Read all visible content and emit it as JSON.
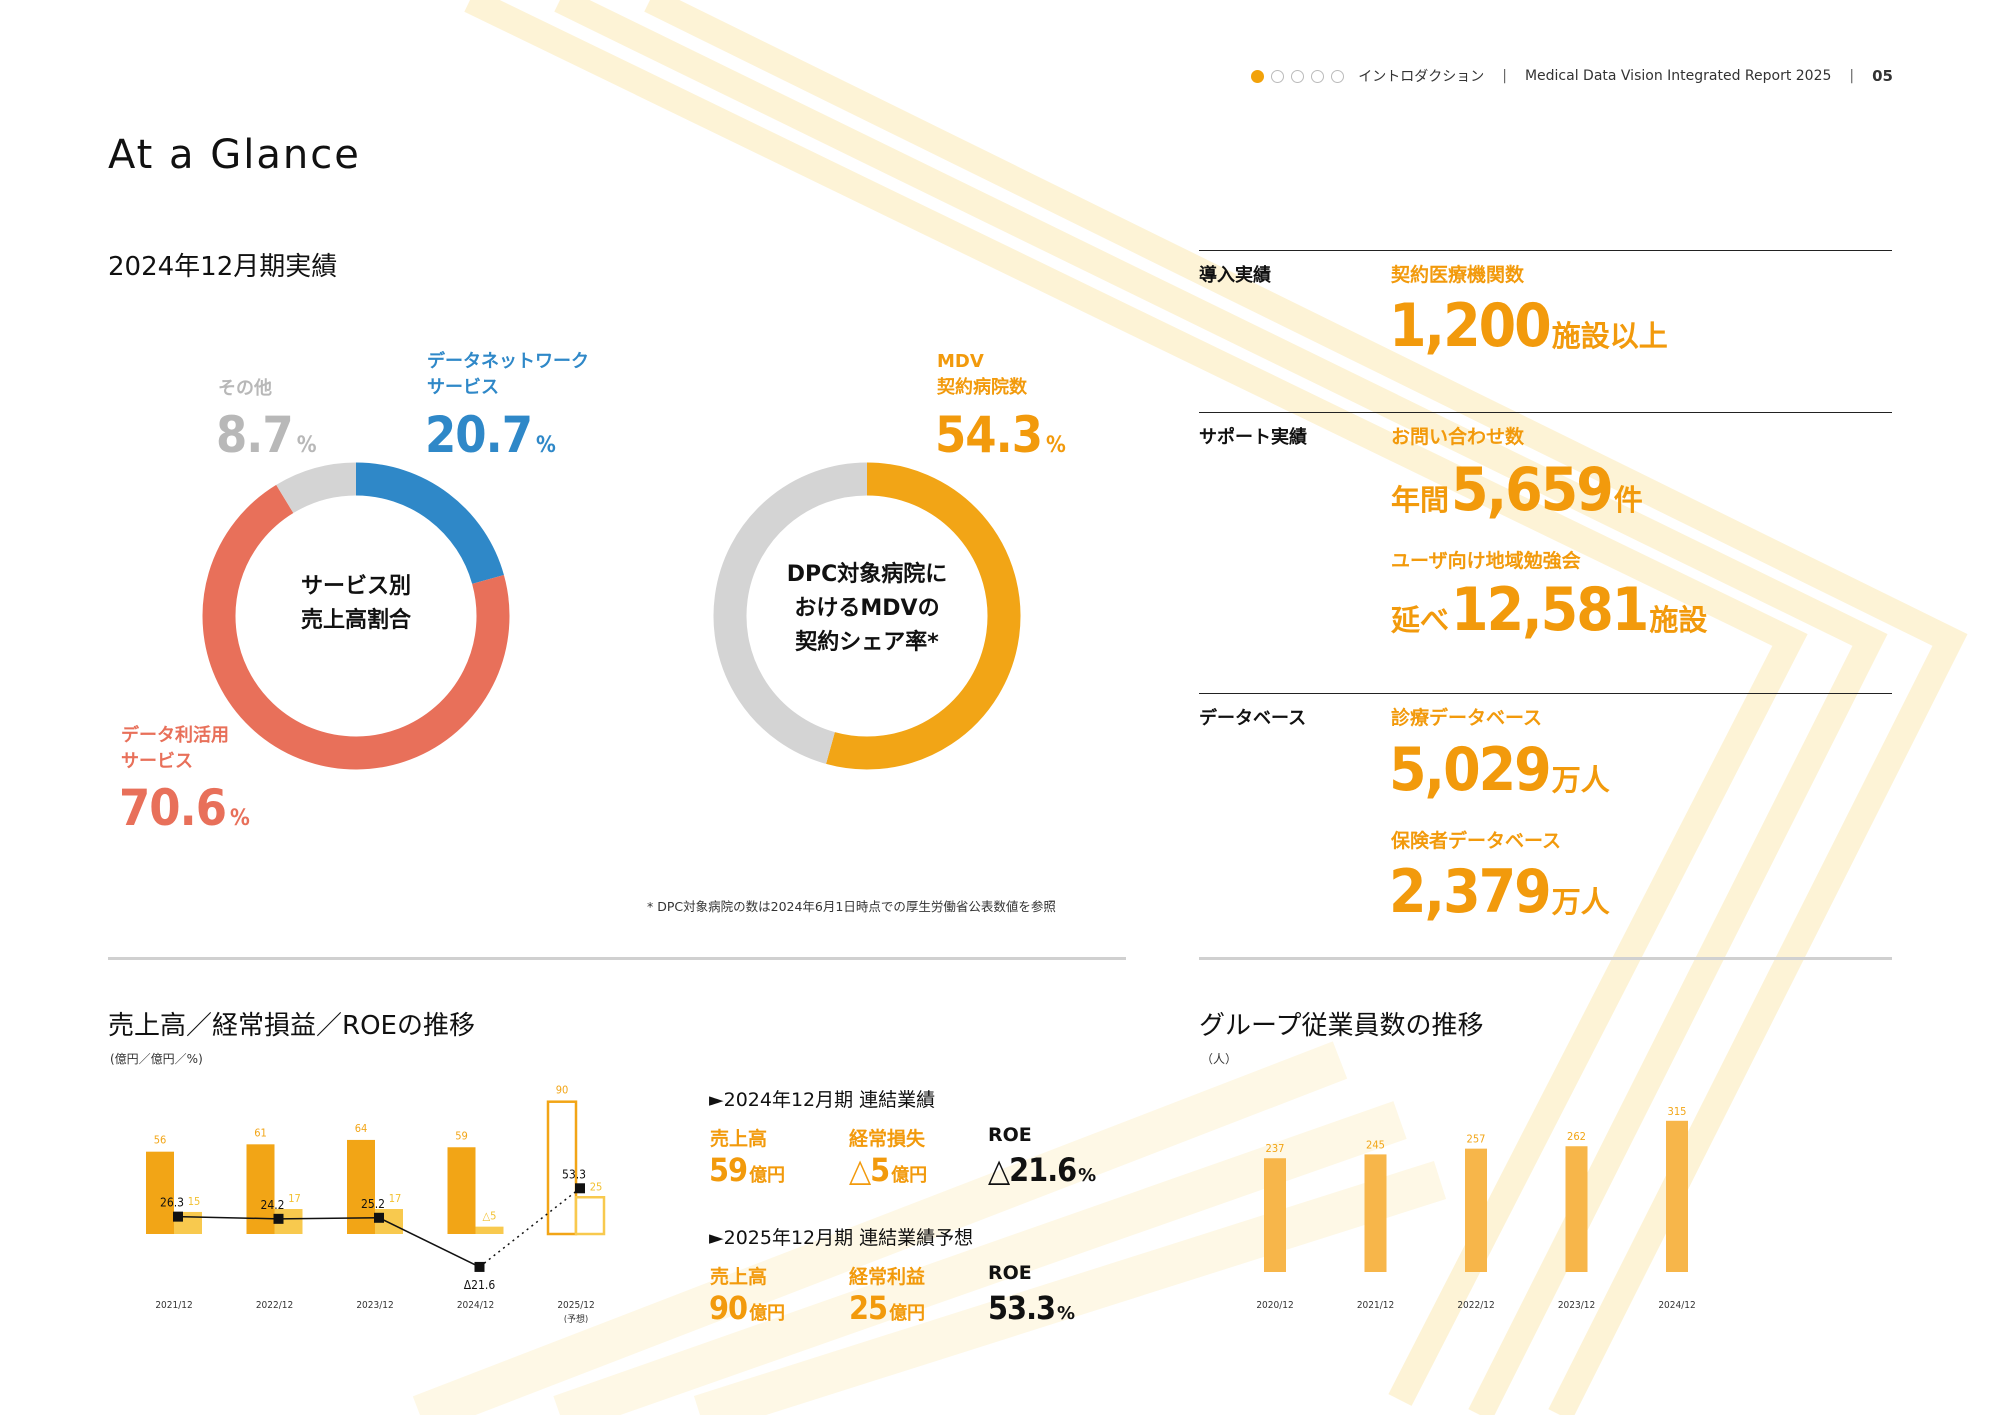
{
  "header": {
    "section": "イントロダクション",
    "report": "Medical Data Vision Integrated Report 2025",
    "page": "05",
    "dots_total": 5,
    "dots_active": 1
  },
  "title": "At a Glance",
  "subtitle": "2024年12月期実績",
  "donut_sales": {
    "center_line1": "サービス別",
    "center_line2": "売上高割合",
    "segments": [
      {
        "label_line1": "データネットワーク",
        "label_line2": "サービス",
        "value": "20.7",
        "unit": "%",
        "share": 20.7,
        "color": "#2f88c8"
      },
      {
        "label_line1": "データ利活用",
        "label_line2": "サービス",
        "value": "70.6",
        "unit": "%",
        "share": 70.6,
        "color": "#e8705a"
      },
      {
        "label_line1": "その他",
        "label_line2": "",
        "value": "8.7",
        "unit": "%",
        "share": 8.7,
        "color": "#d4d4d4"
      }
    ]
  },
  "donut_share": {
    "center_line1": "DPC対象病院に",
    "center_line2": "おけるMDVの",
    "center_line3": "契約シェア率*",
    "label_line1": "MDV",
    "label_line2": "契約病院数",
    "value": "54.3",
    "unit": "%",
    "share": 54.3,
    "color": "#f2a516",
    "rest_color": "#d4d4d4"
  },
  "footnote": "* DPC対象病院の数は2024年6月1日時点での厚生労働省公表数値を参照",
  "kpis": {
    "intro": {
      "category": "導入実績",
      "label": "契約医療機関数",
      "value": "1,200",
      "suffix": "施設以上"
    },
    "support": {
      "category": "サポート実績",
      "items": [
        {
          "label": "お問い合わせ数",
          "prefix": "年間",
          "value": "5,659",
          "suffix": "件"
        },
        {
          "label": "ユーザ向け地域勉強会",
          "prefix": "延べ",
          "value": "12,581",
          "suffix": "施設"
        }
      ]
    },
    "database": {
      "category": "データベース",
      "items": [
        {
          "label": "診療データベース",
          "value": "5,029",
          "suffix": "万人"
        },
        {
          "label": "保険者データベース",
          "value": "2,379",
          "suffix": "万人"
        }
      ]
    }
  },
  "sales_section": {
    "title": "売上高／経常損益／ROEの推移",
    "unit": "(億円／億円／%)",
    "results_2024": {
      "heading": "►2024年12月期 連結業績",
      "items": [
        {
          "label": "売上高",
          "value": "59",
          "suffix": "億円"
        },
        {
          "label": "経常損失",
          "value": "△5",
          "suffix": "億円"
        },
        {
          "label": "ROE",
          "value": "△21.6",
          "suffix": "%"
        }
      ]
    },
    "results_2025": {
      "heading": "►2025年12月期 連結業績予想",
      "items": [
        {
          "label": "売上高",
          "value": "90",
          "suffix": "億円"
        },
        {
          "label": "経常利益",
          "value": "25",
          "suffix": "億円"
        },
        {
          "label": "ROE",
          "value": "53.3",
          "suffix": "%"
        }
      ]
    }
  },
  "employee_section": {
    "title": "グループ従業員数の推移",
    "unit": "（人）"
  },
  "chart_data": [
    {
      "type": "bar",
      "categories": [
        "2021/12",
        "2022/12",
        "2023/12",
        "2024/12",
        "2025/12"
      ],
      "category_notes": [
        "",
        "",
        "",
        "",
        "(予想)"
      ],
      "series": [
        {
          "values": [
            56,
            61,
            64,
            59,
            90
          ],
          "labels": [
            "56",
            "61",
            "64",
            "59",
            "90"
          ],
          "color": "#f2a516",
          "forecast_last": true
        },
        {
          "values": [
            15,
            17,
            17,
            -5,
            25
          ],
          "labels": [
            "15",
            "17",
            "17",
            "△5",
            "25"
          ],
          "color": "#f8c94e",
          "forecast_last": true
        },
        {
          "type": "line",
          "values": [
            26.3,
            24.2,
            25.2,
            -21.6,
            53.3
          ],
          "labels": [
            "26.3",
            "24.2",
            "25.2",
            "Δ21.6",
            "53.3"
          ],
          "color": "#111111",
          "forecast_last": true
        }
      ]
    },
    {
      "type": "bar",
      "categories": [
        "2020/12",
        "2021/12",
        "2022/12",
        "2023/12",
        "2024/12"
      ],
      "values": [
        237,
        245,
        257,
        262,
        315
      ],
      "labels": [
        "237",
        "245",
        "257",
        "262",
        "315"
      ],
      "color": "#f7b64a"
    }
  ]
}
